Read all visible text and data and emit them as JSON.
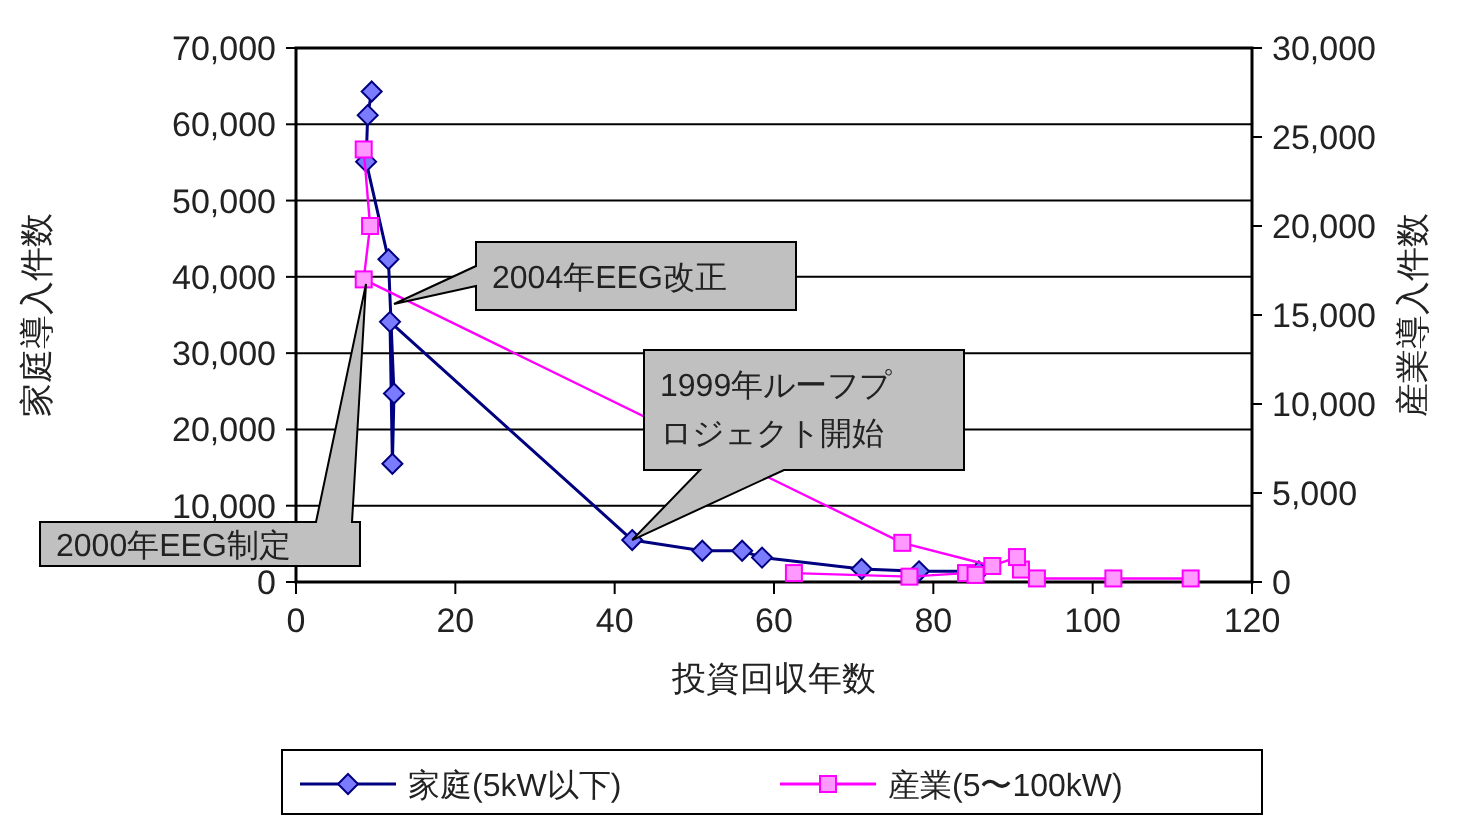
{
  "chart_data": {
    "type": "line",
    "xlabel": "投資回収年数",
    "ylabel": "家庭導入件数",
    "y2label": "産業導入件数",
    "xlim": [
      0,
      120
    ],
    "xticks": [
      0,
      20,
      40,
      60,
      80,
      100,
      120
    ],
    "ylim": [
      0,
      70000
    ],
    "yticks": [
      {
        "value": 0,
        "label": "0"
      },
      {
        "value": 10000,
        "label": "10,000"
      },
      {
        "value": 20000,
        "label": "20,000"
      },
      {
        "value": 30000,
        "label": "30,000"
      },
      {
        "value": 40000,
        "label": "40,000"
      },
      {
        "value": 50000,
        "label": "50,000"
      },
      {
        "value": 60000,
        "label": "60,000"
      },
      {
        "value": 70000,
        "label": "70,000"
      }
    ],
    "y2lim": [
      0,
      30000
    ],
    "y2ticks": [
      {
        "value": 0,
        "label": "0"
      },
      {
        "value": 5000,
        "label": "5,000"
      },
      {
        "value": 10000,
        "label": "10,000"
      },
      {
        "value": 15000,
        "label": "15,000"
      },
      {
        "value": 20000,
        "label": "20,000"
      },
      {
        "value": 25000,
        "label": "25,000"
      },
      {
        "value": 30000,
        "label": "30,000"
      }
    ],
    "grid": "y",
    "legend": "bottom",
    "series": [
      {
        "name": "家庭(5kW以下)",
        "color": "#000080",
        "marker": "diamond",
        "x": [
          85.7,
          78.2,
          71.0,
          58.5,
          56.0,
          51.0,
          42.2,
          11.8,
          12.1,
          12.3,
          11.6,
          8.8,
          9.0,
          9.5
        ],
        "values": [
          1400,
          1400,
          1700,
          3200,
          4100,
          4100,
          5500,
          34100,
          15500,
          24700,
          42300,
          55100,
          61200,
          64300
        ]
      },
      {
        "name": "産業(5〜100kW)",
        "color": "#ff00ff",
        "marker": "square",
        "axis": "y2",
        "x": [
          62.5,
          77.0,
          84.1,
          85.3,
          null,
          112.3,
          102.6,
          93.0,
          91.0,
          90.5,
          87.4,
          76.1,
          8.5,
          9.3,
          8.5
        ],
        "values": [
          500,
          300,
          500,
          400,
          null,
          200,
          200,
          200,
          700,
          1400,
          900,
          2200,
          17000,
          20000,
          24300
        ]
      }
    ],
    "annotations": [
      "2004年EEG改正",
      {
        "text": "1999年ルーフプロジェクト開始",
        "x": 42.2,
        "y": 5500
      },
      "2000年EEG制定"
    ]
  }
}
